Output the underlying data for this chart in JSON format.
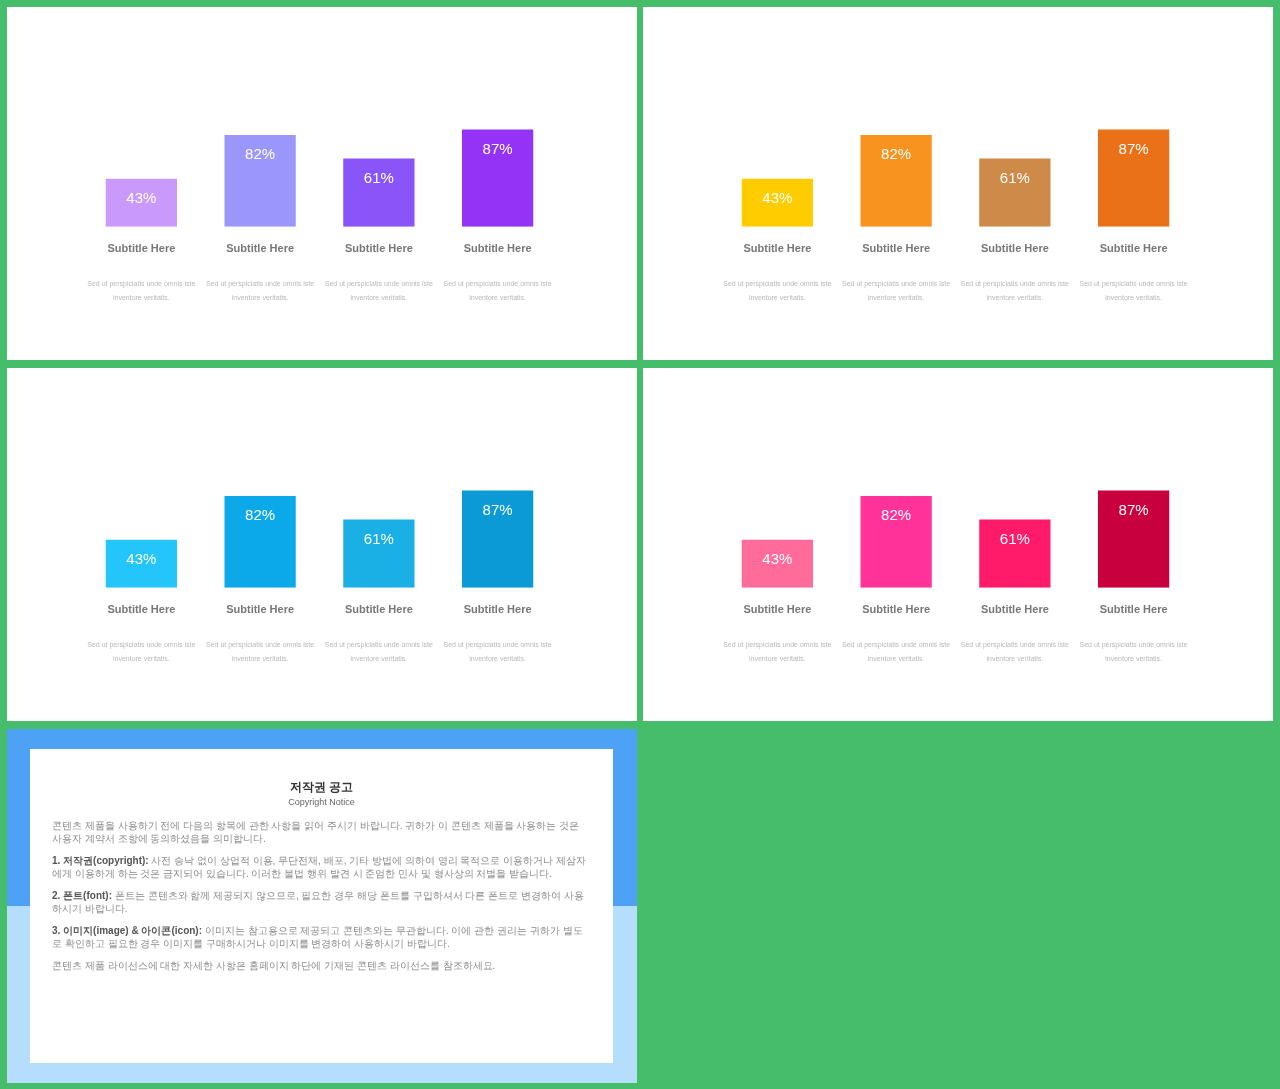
{
  "chart_data": [
    {
      "type": "bar",
      "categories": [
        "Subtitle Here",
        "Subtitle Here",
        "Subtitle Here",
        "Subtitle Here"
      ],
      "values": [
        43,
        82,
        61,
        87
      ],
      "value_labels": [
        "43%",
        "82%",
        "61%",
        "87%"
      ],
      "colors": [
        "#c99afb",
        "#9a96fa",
        "#8a55f8",
        "#9433f6"
      ],
      "tick_labels": "x",
      "annotations": [
        "Sed ut perspiciatis unde omnis iste inventore veritatis.",
        "Sed ut perspiciatis unde omnis iste inventore veritatis.",
        "Sed ut perspiciatis unde omnis iste inventore veritatis.",
        "Sed ut perspiciatis unde omnis iste inventore veritatis."
      ]
    },
    {
      "type": "bar",
      "categories": [
        "Subtitle Here",
        "Subtitle Here",
        "Subtitle Here",
        "Subtitle Here"
      ],
      "values": [
        43,
        82,
        61,
        87
      ],
      "value_labels": [
        "43%",
        "82%",
        "61%",
        "87%"
      ],
      "colors": [
        "#ffcc00",
        "#f7931e",
        "#cd8a48",
        "#ea7117"
      ],
      "tick_labels": "x",
      "annotations": [
        "Sed ut perspiciatis unde omnis iste inventore veritatis.",
        "Sed ut perspiciatis unde omnis iste inventore veritatis.",
        "Sed ut perspiciatis unde omnis iste inventore veritatis.",
        "Sed ut perspiciatis unde omnis iste inventore veritatis."
      ]
    },
    {
      "type": "bar",
      "categories": [
        "Subtitle Here",
        "Subtitle Here",
        "Subtitle Here",
        "Subtitle Here"
      ],
      "values": [
        43,
        82,
        61,
        87
      ],
      "value_labels": [
        "43%",
        "82%",
        "61%",
        "87%"
      ],
      "colors": [
        "#24c5fb",
        "#0ba9e8",
        "#1ab0e6",
        "#0a9ad6"
      ],
      "tick_labels": "x",
      "annotations": [
        "Sed ut perspiciatis unde omnis iste inventore veritatis.",
        "Sed ut perspiciatis unde omnis iste inventore veritatis.",
        "Sed ut perspiciatis unde omnis iste inventore veritatis.",
        "Sed ut perspiciatis unde omnis iste inventore veritatis."
      ]
    },
    {
      "type": "bar",
      "categories": [
        "Subtitle Here",
        "Subtitle Here",
        "Subtitle Here",
        "Subtitle Here"
      ],
      "values": [
        43,
        82,
        61,
        87
      ],
      "value_labels": [
        "43%",
        "82%",
        "61%",
        "87%"
      ],
      "colors": [
        "#ff6b9a",
        "#ff3399",
        "#ff1a6a",
        "#c8003d"
      ],
      "tick_labels": "x",
      "annotations": [
        "Sed ut perspiciatis unde omnis iste inventore veritatis.",
        "Sed ut perspiciatis unde omnis iste inventore veritatis.",
        "Sed ut perspiciatis unde omnis iste inventore veritatis.",
        "Sed ut perspiciatis unde omnis iste inventore veritatis."
      ]
    },
    {
      "type": "other",
      "title": "저작권 공고",
      "subtitle": "Copyright Notice",
      "annotations": [
        "콘텐츠 제품을 사용하기 전에 다음의 항목에 관한 사항을 읽어 주시기 바랍니다. 귀하가 이 콘텐츠 제품을 사용하는 것은 사용자 계약서 조항에 동의하셨음을 의미합니다.",
        "1. 저작권(copyright): 사전 승낙 없이 상업적 이용, 무단전재, 배포, 기타 방법에 의하여 영리 목적으로 이용하거나 제삼자에게 이용하게 하는 것은 금지되어 있습니다. 이러한 불법 행위 발견 시 준엄한 민사 및 형사상의 처벌을 받습니다.",
        "2. 폰트(font): 폰트는 콘텐츠와 함께 제공되지 않으므로, 필요한 경우 해당 폰트를 구입하셔서 다른 폰트로 변경하여 사용하시기 바랍니다.",
        "3. 이미지(image) & 아이콘(icon): 이미지는 참고용으로 제공되고 콘텐츠와는 무관합니다. 이에 관한 권리는 귀하가 별도로 확인하고 필요한 경우 이미지를 구매하시거나 이미지를 변경하여 사용하시기 바랍니다.",
        "콘텐츠 제품 라이선스에 대한 자세한 사항은 홈페이지 하단에 기재된 콘텐츠 라이선스를 참조하세요."
      ]
    }
  ]
}
